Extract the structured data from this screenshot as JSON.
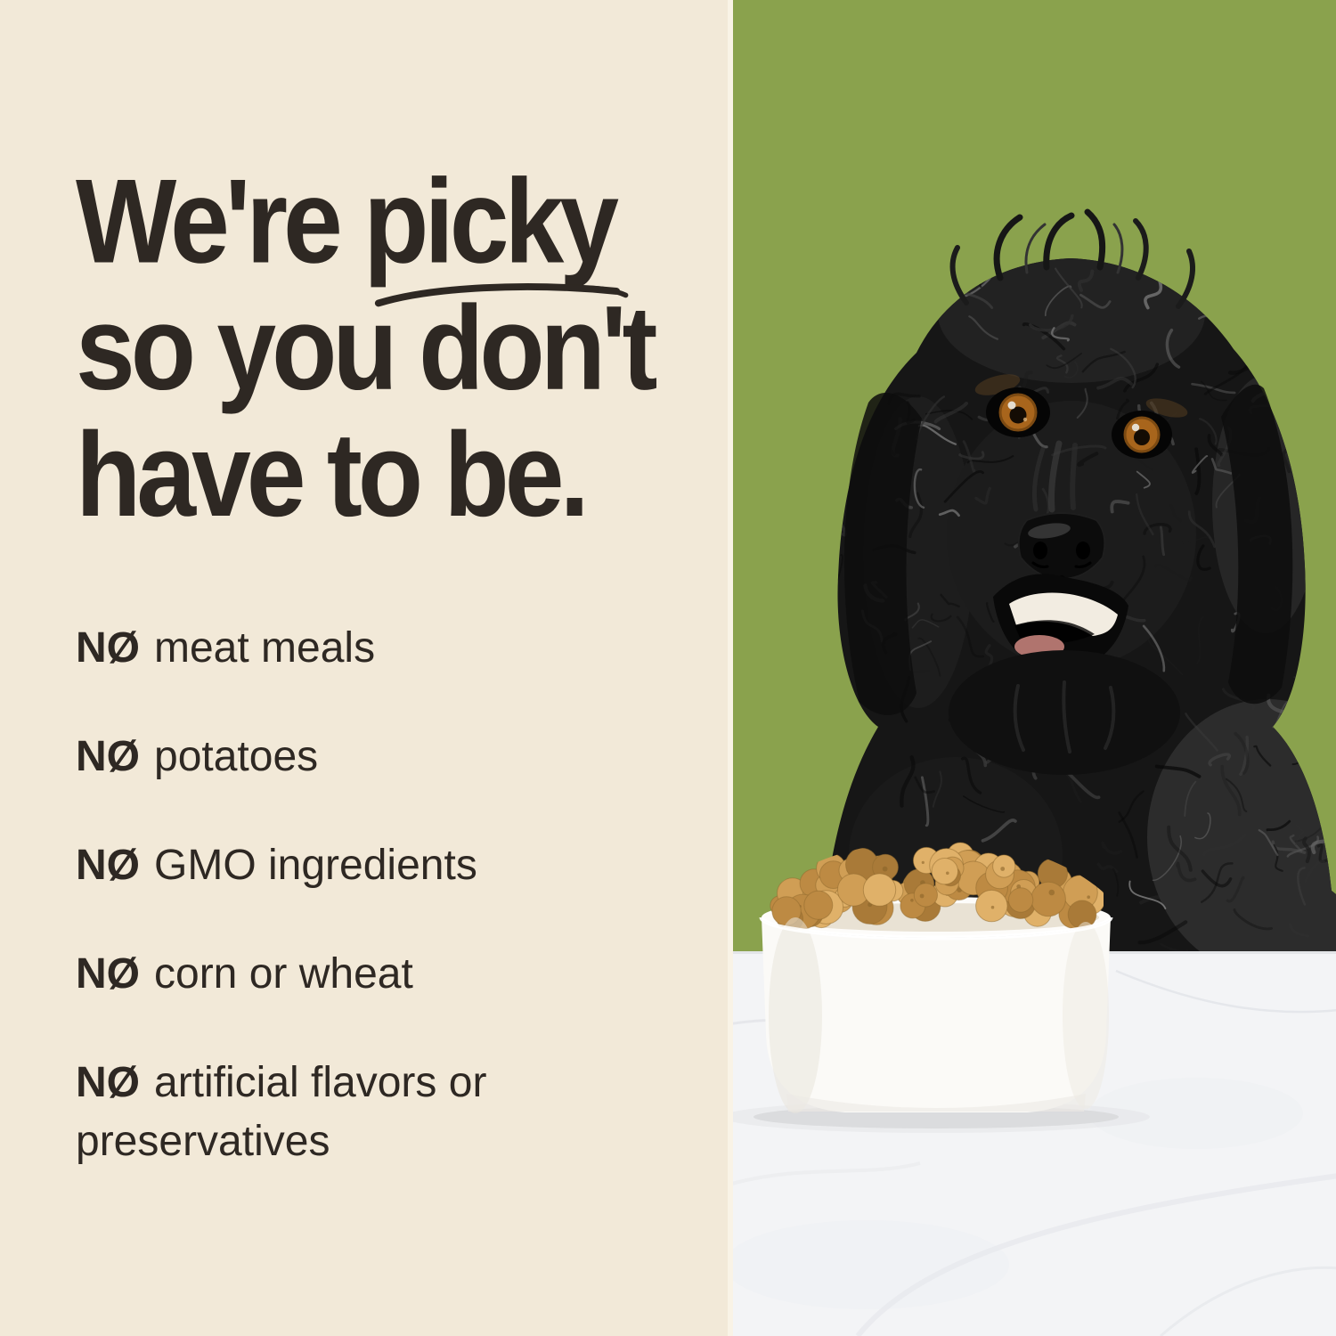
{
  "left_panel": {
    "headline": {
      "line1_prefix": "We're ",
      "line1_underline": "picky",
      "line2": "so you don't",
      "line3": "have to be."
    },
    "checklist": [
      {
        "prefix": "NØ",
        "text": "meat meals"
      },
      {
        "prefix": "NØ",
        "text": "potatoes"
      },
      {
        "prefix": "NØ",
        "text": "GMO ingredients"
      },
      {
        "prefix": "NØ",
        "text": "corn or wheat"
      },
      {
        "prefix": "NØ",
        "text": "artificial flavors or preservatives"
      }
    ]
  },
  "photo": {
    "subject": "black curly-coated dog behind a white bowl of kibble",
    "background": "olive-green studio backdrop",
    "surface": "white marble table"
  },
  "colors": {
    "cream_bg": "#f2e9d8",
    "green_bg": "#8aa24d",
    "text": "#2e2823",
    "marble": "#f3f4f6",
    "bowl": "#fbfaf7",
    "eye_amber": "#a8651c",
    "kibble_palette": [
      "#e0b169",
      "#d09e55",
      "#bd8a43",
      "#a97a38"
    ],
    "fur_palette": [
      "#0a0a0a",
      "#1c1c1c",
      "#2f2f2f",
      "#3f3f3f",
      "#525252",
      "#6b6b6b",
      "#8c8c8c"
    ]
  }
}
